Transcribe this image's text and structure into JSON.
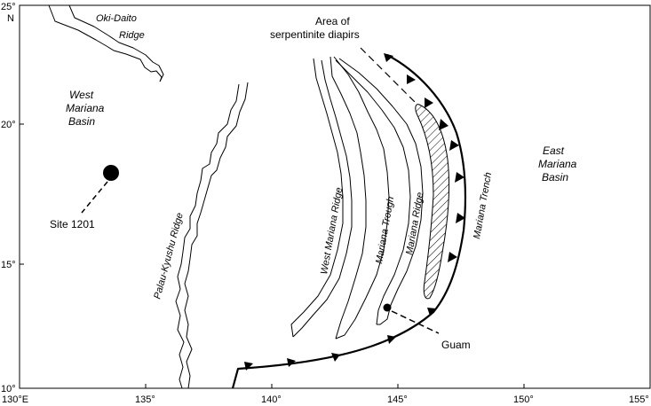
{
  "axes": {
    "x_ticks": [
      "130°E",
      "135°",
      "140°",
      "145°",
      "150°",
      "155°"
    ],
    "y_ticks": [
      "25°",
      "20°",
      "15°",
      "10°"
    ],
    "north_label": "N"
  },
  "features": {
    "oki_daito_ridge": [
      "Oki-Daito",
      "Ridge"
    ],
    "west_mariana_basin": [
      "West",
      "Mariana",
      "Basin"
    ],
    "east_mariana_basin": [
      "East",
      "Mariana",
      "Basin"
    ],
    "palau_kyushu_ridge": "Palau-Kyushu Ridge",
    "west_mariana_ridge": "West Mariana Ridge",
    "mariana_trough": "Mariana Trough",
    "mariana_ridge": "Mariana Ridge",
    "mariana_trench": "Mariana Trench",
    "serpentinite_area": [
      "Area of",
      "serpentinite diapirs"
    ]
  },
  "sites": {
    "site_1201": "Site 1201",
    "guam": "Guam"
  }
}
